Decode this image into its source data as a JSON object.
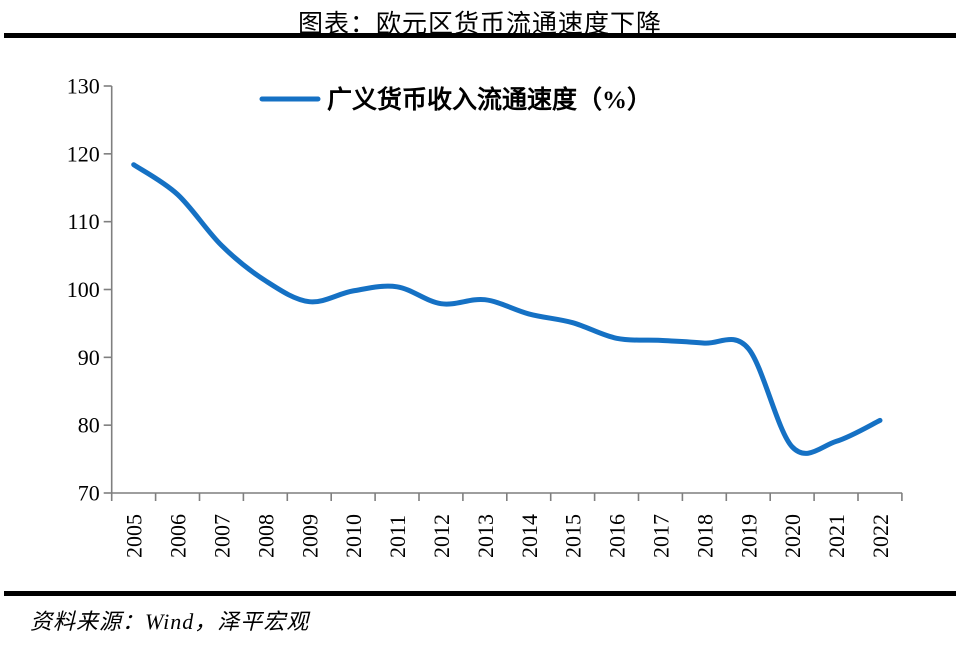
{
  "title": "图表：欧元区货币流通速度下降",
  "source": "资料来源：Wind，泽平宏观",
  "colors": {
    "line": "#1571C4",
    "axis": "#7F7F7F",
    "text": "#000000",
    "rule": "#000000"
  },
  "chart_data": {
    "type": "line",
    "title": "图表：欧元区货币流通速度下降",
    "legend": [
      "广义货币收入流通速度（%）"
    ],
    "legend_position": "top-center",
    "categories": [
      "2005",
      "2006",
      "2007",
      "2008",
      "2009",
      "2010",
      "2011",
      "2012",
      "2013",
      "2014",
      "2015",
      "2016",
      "2017",
      "2018",
      "2019",
      "2020",
      "2021",
      "2022"
    ],
    "series": [
      {
        "name": "广义货币收入流通速度（%）",
        "values": [
          118.4,
          114.0,
          106.5,
          101.3,
          98.2,
          99.8,
          100.4,
          97.9,
          98.5,
          96.4,
          95.1,
          92.8,
          92.5,
          92.1,
          91.3,
          76.8,
          77.6,
          80.7
        ]
      }
    ],
    "xlabel": "",
    "ylabel": "",
    "ylim": [
      70,
      130
    ],
    "y_ticks": [
      70,
      80,
      90,
      100,
      110,
      120,
      130
    ],
    "grid": false
  }
}
